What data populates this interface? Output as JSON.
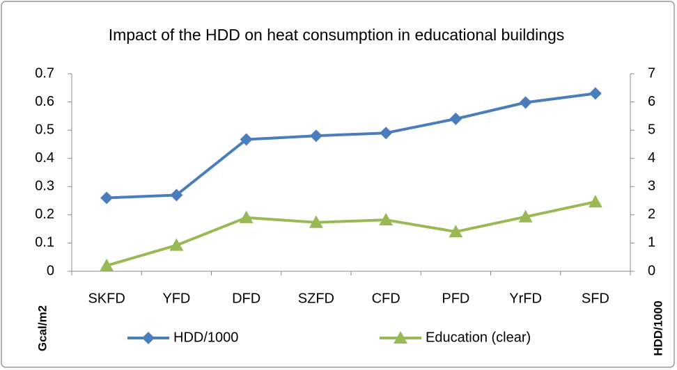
{
  "chart_data": {
    "type": "line",
    "title": "Impact of the HDD on heat consumption  in educational  buildings",
    "y_label": "Gcal/m2",
    "y2_label": "HDD/1000",
    "categories": [
      "SKFD",
      "YFD",
      "DFD",
      "SZFD",
      "CFD",
      "PFD",
      "YrFD",
      "SFD"
    ],
    "series": [
      {
        "name": "HDD/1000",
        "color": "#4a7ebb",
        "marker": "diamond",
        "axis": "y2",
        "values": [
          2.6,
          2.7,
          4.67,
          4.8,
          4.9,
          5.4,
          5.98,
          6.3
        ]
      },
      {
        "name": "Education (clear)",
        "color": "#98b954",
        "marker": "triangle",
        "values": [
          0.02,
          0.092,
          0.19,
          0.173,
          0.182,
          0.14,
          0.193,
          0.246
        ]
      }
    ],
    "ylim": [
      0,
      0.7
    ],
    "yticks": [
      0,
      0.1,
      0.2,
      0.3,
      0.4,
      0.5,
      0.6,
      0.7
    ],
    "y2lim": [
      0,
      7
    ],
    "y2ticks": [
      0,
      1,
      2,
      3,
      4,
      5,
      6,
      7
    ],
    "grid": false
  }
}
